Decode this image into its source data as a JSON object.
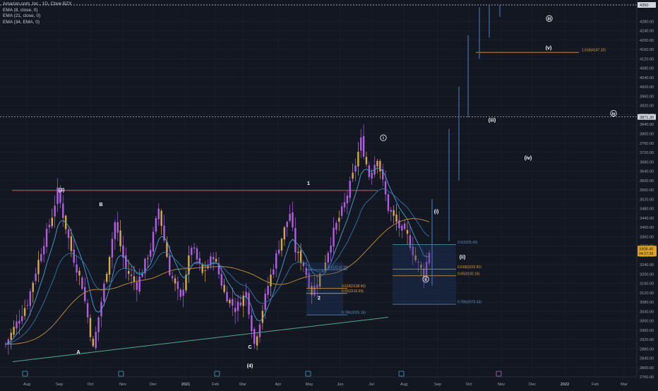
{
  "legend": {
    "title": "Amazon.com, Inc., 1D, Cboe BZX",
    "ema8": "EMA (8, close, 0)",
    "ema21": "EMA (21, close, 0)",
    "ema34": "EMA (34, EMA, 0)"
  },
  "colors": {
    "background": "#131722",
    "grid": "#1f2430",
    "candle": "#b15fe0",
    "candle_alt": "#d8a84a",
    "ema8": "#49a0d6",
    "ema21": "#2f77a8",
    "ema34": "#c89038",
    "resistance": "#e05060",
    "support": "#4fa88c",
    "fib": "#e0a030",
    "fib_blue": "#5a90c0",
    "projection": "#3f6fb8",
    "axis_text": "#9aa0ae",
    "label": "#ffffff",
    "price_tag": "#e0a020"
  },
  "price_axis": {
    "labels": [
      "4280.00",
      "4240.00",
      "4200.00",
      "4160.00",
      "4120.00",
      "4080.00",
      "4040.00",
      "4000.00",
      "3960.00",
      "3920.00",
      "3880.00",
      "3840.00",
      "3800.00",
      "3760.00",
      "3720.00",
      "3680.00",
      "3640.00",
      "3600.00",
      "3560.00",
      "3520.00",
      "3480.00",
      "3440.00",
      "3400.00",
      "3360.00",
      "3320.00",
      "3280.00",
      "3240.00",
      "3200.00",
      "3160.00",
      "3120.00",
      "3080.00",
      "3040.00",
      "3000.00",
      "2960.00",
      "2920.00",
      "2880.00",
      "2840.00",
      "2800.00",
      "2760.00"
    ],
    "current_price": "3308.40",
    "countdown": "04:27:33",
    "top_tag": "4350",
    "mid_tag": "3871.30",
    "top_price": 4350,
    "mid_price": 3871.3
  },
  "time_axis": {
    "labels": [
      "Aug",
      "Sep",
      "Oct",
      "Nov",
      "Dec",
      "2021",
      "Feb",
      "Mar",
      "Apr",
      "May",
      "Jun",
      "Jul",
      "Aug",
      "Sep",
      "Oct",
      "Nov",
      "Dec",
      "2022",
      "Feb",
      "Mar"
    ]
  },
  "wave_labels": {
    "w3": "(3)",
    "wB": "B",
    "wA": "A",
    "wC": "C",
    "w4": "(4)",
    "w1": "1",
    "w2": "2",
    "wi": "i",
    "wii": "ii",
    "wiii": "iii",
    "wiv": "iv",
    "wp_i": "(i)",
    "wp_ii": "(ii)",
    "wp_iii": "(iii)",
    "wp_iv": "(iv)",
    "wp_v": "(v)"
  },
  "fib_levels": {
    "l1": "0.618(3138.60)",
    "l2": "0.65(3116.99)",
    "l3": "0.786(3025.15)",
    "l4": "0.5(3218.28)",
    "l5": "0.5(3325.43)",
    "l6": "0.618(3220.81)",
    "l7": "0.65(3192.16)",
    "l8": "0.786(3070.43)",
    "l9": "1.618(4147.32)"
  },
  "chart_data": {
    "type": "candlestick",
    "title": "Amazon.com, Inc., 1D, Cboe BZX",
    "ylim": [
      2760,
      4350
    ],
    "x_ticks": [
      "Aug",
      "Sep",
      "Oct",
      "Nov",
      "Dec",
      "2021",
      "Feb",
      "Mar",
      "Apr",
      "May",
      "Jun",
      "Jul",
      "Aug",
      "Sep",
      "Oct",
      "Nov",
      "Dec",
      "2022",
      "Feb",
      "Mar"
    ],
    "anchors": [
      {
        "t": 0,
        "p": 2900
      },
      {
        "t": 8,
        "p": 3080
      },
      {
        "t": 13,
        "p": 3300
      },
      {
        "t": 17,
        "p": 3450
      },
      {
        "t": 19,
        "p": 3552
      },
      {
        "t": 24,
        "p": 3300
      },
      {
        "t": 28,
        "p": 3150
      },
      {
        "t": 32,
        "p": 2880
      },
      {
        "t": 36,
        "p": 3150
      },
      {
        "t": 40,
        "p": 3420
      },
      {
        "t": 44,
        "p": 3220
      },
      {
        "t": 48,
        "p": 3150
      },
      {
        "t": 53,
        "p": 3310
      },
      {
        "t": 56,
        "p": 3480
      },
      {
        "t": 60,
        "p": 3210
      },
      {
        "t": 64,
        "p": 3090
      },
      {
        "t": 68,
        "p": 3320
      },
      {
        "t": 72,
        "p": 3200
      },
      {
        "t": 76,
        "p": 3280
      },
      {
        "t": 80,
        "p": 3120
      },
      {
        "t": 84,
        "p": 3050
      },
      {
        "t": 88,
        "p": 3120
      },
      {
        "t": 91,
        "p": 2900
      },
      {
        "t": 96,
        "p": 3150
      },
      {
        "t": 100,
        "p": 3320
      },
      {
        "t": 104,
        "p": 3460
      },
      {
        "t": 106,
        "p": 3300
      },
      {
        "t": 109,
        "p": 3240
      },
      {
        "t": 112,
        "p": 3120
      },
      {
        "t": 116,
        "p": 3220
      },
      {
        "t": 120,
        "p": 3380
      },
      {
        "t": 124,
        "p": 3500
      },
      {
        "t": 127,
        "p": 3620
      },
      {
        "t": 130,
        "p": 3770
      },
      {
        "t": 133,
        "p": 3620
      },
      {
        "t": 136,
        "p": 3700
      },
      {
        "t": 140,
        "p": 3480
      },
      {
        "t": 144,
        "p": 3400
      },
      {
        "t": 147,
        "p": 3360
      },
      {
        "t": 150,
        "p": 3260
      },
      {
        "t": 153,
        "p": 3200
      },
      {
        "t": 155,
        "p": 3300
      }
    ],
    "n_candles": 156,
    "wave_points": {
      "w3": 3552,
      "wB": 3490,
      "wA": 2860,
      "wC": 2880,
      "w4": 2800,
      "w1": 3580,
      "w2": 3090,
      "wi": 3775,
      "wii": 3170,
      "wiii": 4285,
      "wiv": 3880,
      "wp_i": 3460,
      "wp_ii": 3265,
      "wp_iii": 3850,
      "wp_iv": 3690,
      "wp_v": 4160
    },
    "resistance_line": {
      "from": 3557,
      "to": 3557
    },
    "support_line": {
      "from": 2825,
      "to": 3015
    },
    "fib_prices": {
      "l1": 3138.6,
      "l2": 3116.99,
      "l3": 3025.15,
      "l4": 3218.28,
      "l5": 3325.43,
      "l6": 3220.81,
      "l7": 3192.16,
      "l8": 3070.43,
      "l9": 4147.32
    },
    "projection_bars": [
      {
        "lo": 3150,
        "hi": 3520
      },
      {
        "lo": 3340,
        "hi": 3820
      },
      {
        "lo": 3600,
        "hi": 4000
      },
      {
        "lo": 3870,
        "hi": 4220
      },
      {
        "lo": 4120,
        "hi": 4340
      },
      {
        "lo": 4210,
        "hi": 4350
      },
      {
        "lo": 4300,
        "hi": 4350
      }
    ]
  }
}
